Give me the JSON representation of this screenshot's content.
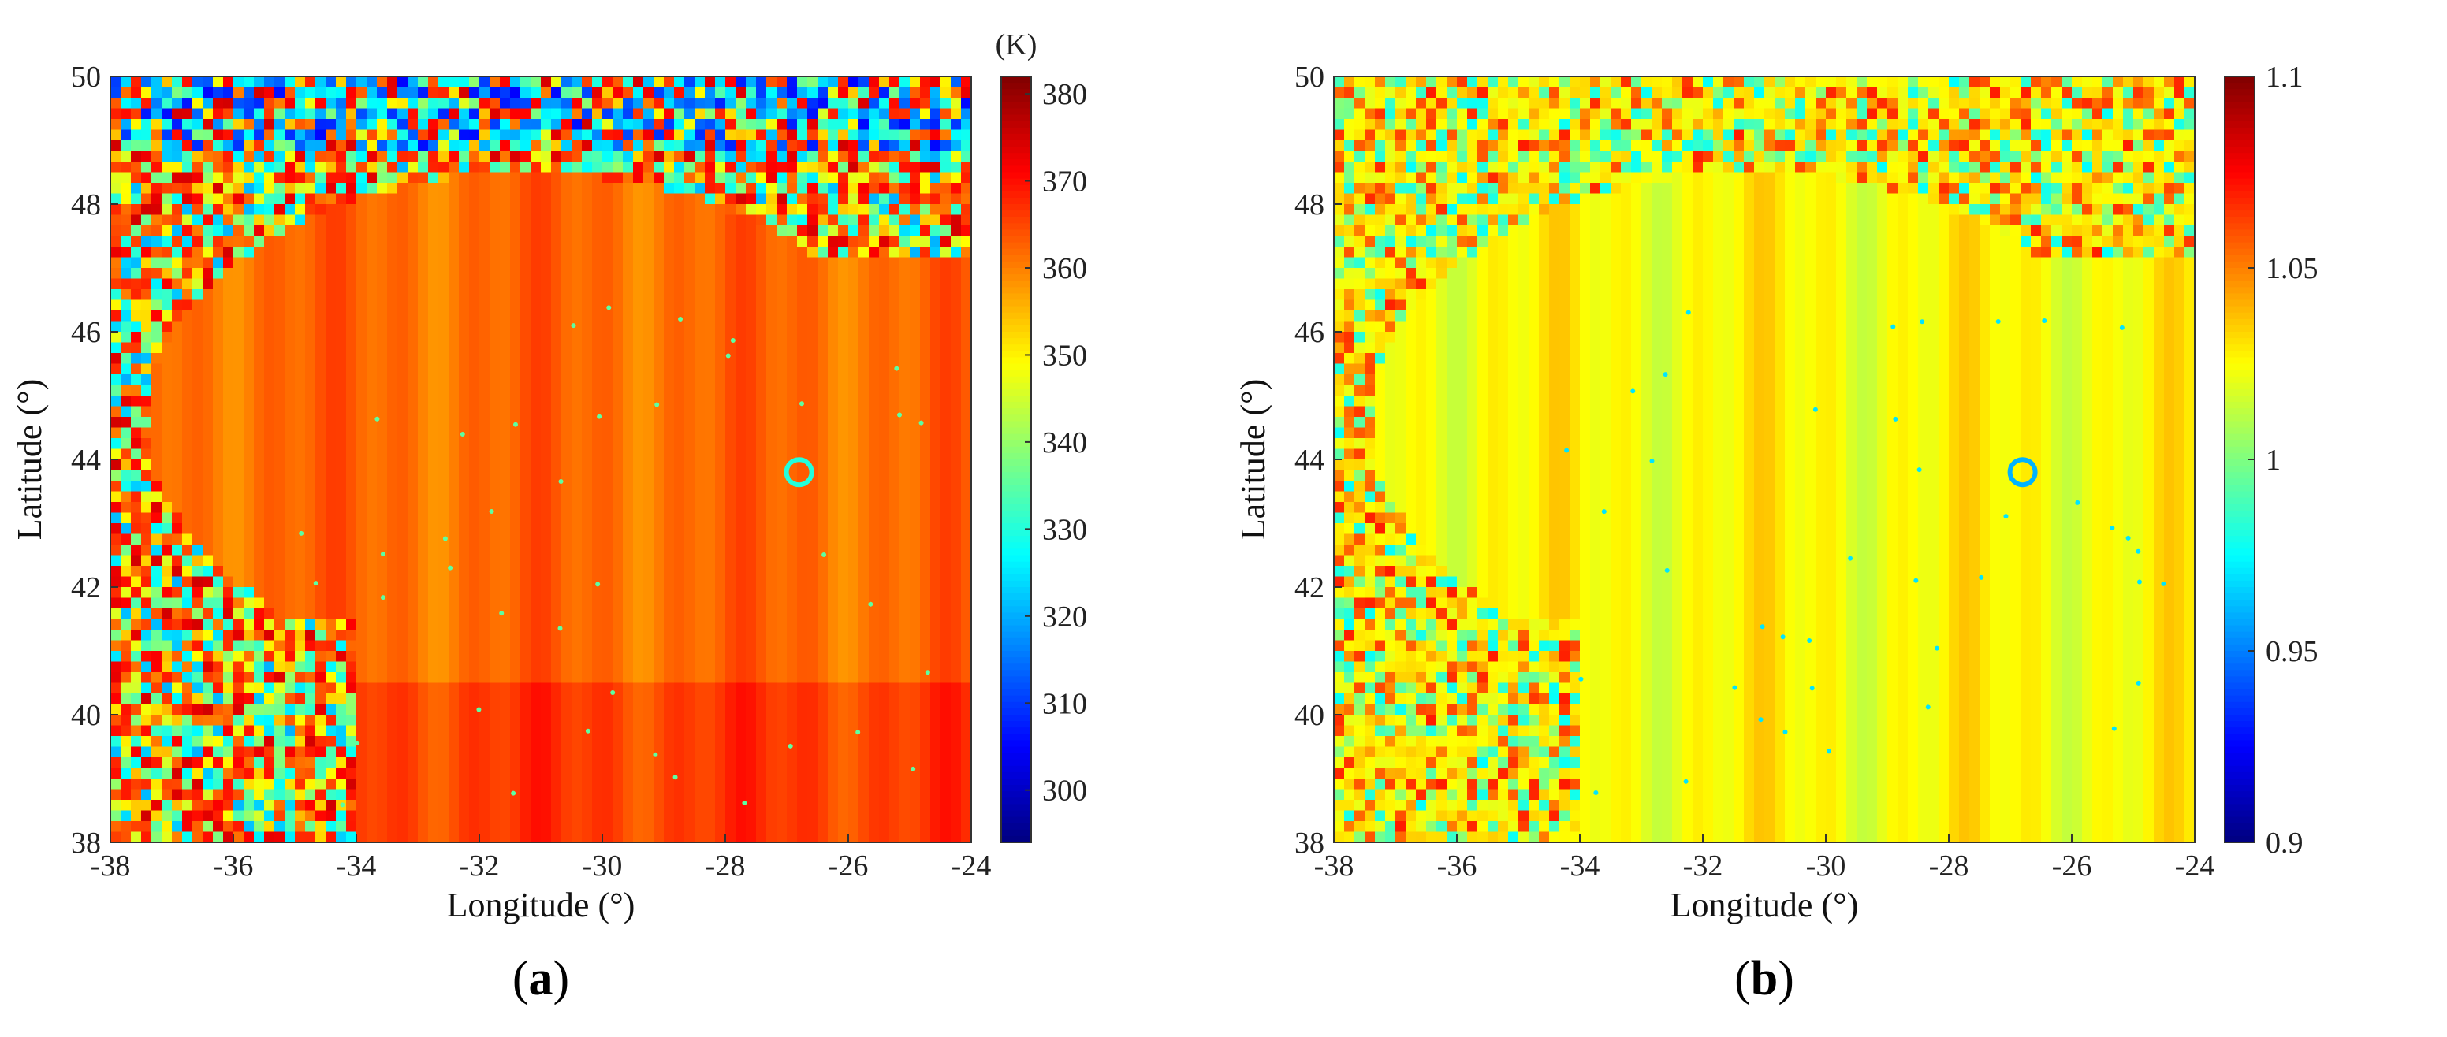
{
  "chart_data": [
    {
      "type": "heatmap",
      "panel_label": "(a)",
      "label_open": "(",
      "label_letter": "a",
      "label_close": ")",
      "xlabel": "Longitude (°)",
      "ylabel": "Latitude (°)",
      "xlim": [
        -38,
        -24
      ],
      "ylim": [
        38,
        50
      ],
      "xticks": [
        -38,
        -36,
        -34,
        -32,
        -30,
        -28,
        -26,
        -24
      ],
      "yticks": [
        38,
        40,
        42,
        44,
        46,
        48,
        50
      ],
      "colorbar": {
        "unit": "(K)",
        "min": 294,
        "max": 382,
        "ticks": [
          300,
          310,
          320,
          330,
          340,
          350,
          360,
          370,
          380
        ],
        "colormap": "jet"
      },
      "base_value": 362
    },
    {
      "type": "heatmap",
      "panel_label": "(b)",
      "label_open": "(",
      "label_letter": "b",
      "label_close": ")",
      "xlabel": "Longitude (°)",
      "ylabel": "Latitude (°)",
      "xlim": [
        -38,
        -24
      ],
      "ylim": [
        38,
        50
      ],
      "xticks": [
        -38,
        -36,
        -34,
        -32,
        -30,
        -28,
        -26,
        -24
      ],
      "yticks": [
        38,
        40,
        42,
        44,
        46,
        48,
        50
      ],
      "colorbar": {
        "unit": "",
        "min": 0.9,
        "max": 1.1,
        "ticks": [
          0.9,
          0.95,
          1,
          1.05,
          1.1
        ],
        "tick_labels": [
          "0.9",
          "0.95",
          "1",
          "1.05",
          "1.1"
        ],
        "colormap": "jet"
      },
      "base_value": 1.025
    }
  ]
}
